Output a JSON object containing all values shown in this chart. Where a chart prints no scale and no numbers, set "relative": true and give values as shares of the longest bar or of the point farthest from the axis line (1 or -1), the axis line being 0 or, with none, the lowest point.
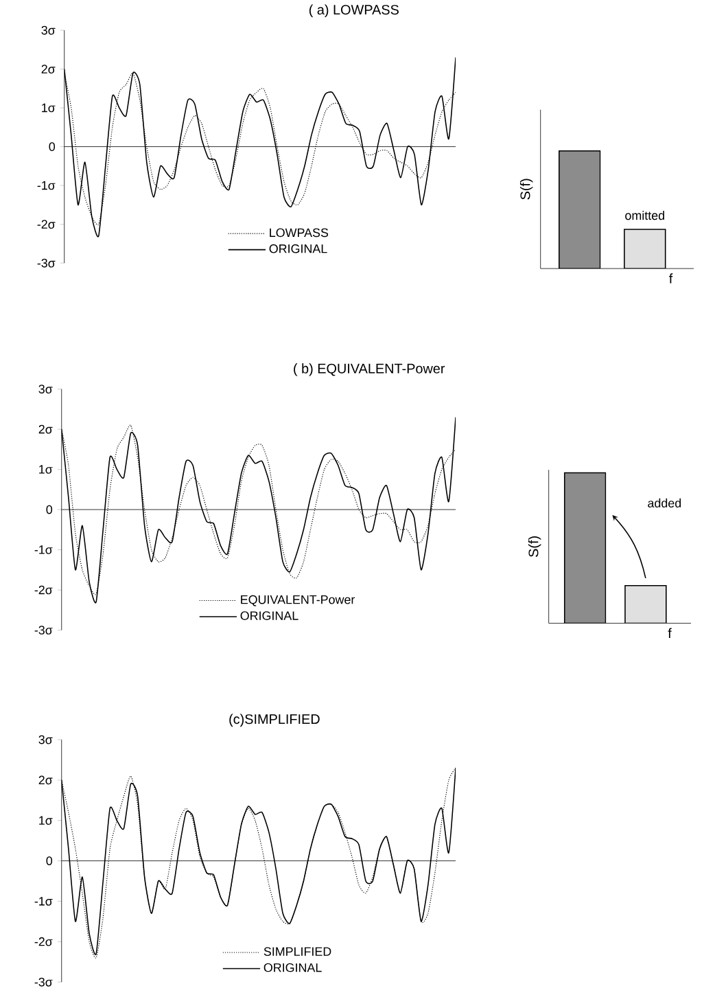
{
  "chart_data": [
    {
      "type": "line",
      "title": "( a) LOWPASS",
      "categories": [
        null,
        null,
        null,
        null,
        null,
        null,
        null,
        null,
        null,
        null,
        null,
        null,
        null,
        null,
        null,
        null,
        null,
        null,
        null,
        null,
        null,
        null,
        null,
        null,
        null,
        null,
        null,
        null,
        null,
        null,
        null,
        null,
        null,
        null,
        null,
        null,
        null,
        null,
        null,
        null,
        null,
        null,
        null,
        null,
        null,
        null,
        null,
        null,
        null,
        null,
        null,
        null,
        null,
        null,
        null,
        null,
        null,
        null
      ],
      "ylim": [
        -3,
        3
      ],
      "yticks": [
        {
          "value": 3,
          "label": "3σ"
        },
        {
          "value": 2,
          "label": "2σ"
        },
        {
          "value": 1,
          "label": "1σ"
        },
        0,
        {
          "value": -1,
          "label": "-1σ"
        },
        {
          "value": -2,
          "label": "-2σ"
        },
        {
          "value": -3,
          "label": "-3σ"
        }
      ],
      "legend": "bottom",
      "series": [
        {
          "name": "LOWPASS",
          "color": "#000000",
          "line_style": "dotted",
          "values": [
            1.9,
            1.0,
            -0.5,
            -1.3,
            -1.8,
            -2.0,
            -1.0,
            0.5,
            1.4,
            1.6,
            1.9,
            1.2,
            0.0,
            -0.9,
            -1.1,
            -1.0,
            -0.6,
            0.0,
            0.5,
            0.8,
            0.6,
            0.0,
            -0.6,
            -1.0,
            -1.0,
            -0.3,
            0.6,
            1.2,
            1.4,
            1.5,
            1.0,
            0.0,
            -0.9,
            -1.4,
            -1.5,
            -1.2,
            -0.5,
            0.3,
            0.9,
            1.1,
            1.1,
            0.8,
            0.5,
            0.1,
            -0.2,
            -0.2,
            -0.1,
            -0.1,
            -0.3,
            -0.4,
            -0.5,
            -0.7,
            -0.8,
            -0.4,
            0.3,
            0.9,
            1.2,
            1.4
          ]
        },
        {
          "name": "ORIGINAL",
          "color": "#000000",
          "line_style": "solid",
          "values": [
            2.0,
            0.3,
            -1.5,
            -0.4,
            -1.8,
            -2.3,
            -0.5,
            1.3,
            1.0,
            0.8,
            1.9,
            1.6,
            -0.4,
            -1.3,
            -0.5,
            -0.7,
            -0.8,
            0.3,
            1.2,
            1.1,
            0.2,
            -0.3,
            -0.35,
            -0.9,
            -1.1,
            -0.1,
            0.9,
            1.35,
            1.15,
            1.2,
            0.7,
            -0.2,
            -1.3,
            -1.55,
            -1.1,
            -0.5,
            0.3,
            0.9,
            1.35,
            1.4,
            1.1,
            0.6,
            0.55,
            0.4,
            -0.5,
            -0.5,
            0.3,
            0.6,
            -0.1,
            -0.8,
            0.0,
            -0.2,
            -1.5,
            -0.6,
            0.9,
            1.3,
            0.2,
            2.3
          ]
        }
      ]
    },
    {
      "type": "bar",
      "relative": true,
      "ylabel": "S(f)",
      "xlabel": "f",
      "categories": [
        null,
        null
      ],
      "annotations": [
        "omitted"
      ],
      "series": [
        {
          "colors": [
            "#8c8c8c",
            "#e0e0e0"
          ],
          "values": [
            1,
            0.333
          ]
        }
      ]
    },
    {
      "type": "line",
      "title": "( b) EQUIVALENT-Power",
      "categories": [
        null,
        null,
        null,
        null,
        null,
        null,
        null,
        null,
        null,
        null,
        null,
        null,
        null,
        null,
        null,
        null,
        null,
        null,
        null,
        null,
        null,
        null,
        null,
        null,
        null,
        null,
        null,
        null,
        null,
        null,
        null,
        null,
        null,
        null,
        null,
        null,
        null,
        null,
        null,
        null,
        null,
        null,
        null,
        null,
        null,
        null,
        null,
        null,
        null,
        null,
        null,
        null,
        null,
        null,
        null,
        null,
        null,
        null
      ],
      "ylim": [
        -3,
        3
      ],
      "yticks": [
        {
          "value": 3,
          "label": "3σ"
        },
        {
          "value": 2,
          "label": "2σ"
        },
        {
          "value": 1,
          "label": "1σ"
        },
        0,
        {
          "value": -1,
          "label": "-1σ"
        },
        {
          "value": -2,
          "label": "-2σ"
        },
        {
          "value": -3,
          "label": "-3σ"
        }
      ],
      "legend": "bottom",
      "series": [
        {
          "name": "EQUIVALENT-Power",
          "color": "#000000",
          "line_style": "dotted",
          "values": [
            2.0,
            1.1,
            -0.6,
            -1.5,
            -1.9,
            -2.1,
            -1.1,
            0.5,
            1.5,
            1.8,
            2.1,
            1.3,
            0.0,
            -1.0,
            -1.3,
            -1.2,
            -0.7,
            0.0,
            0.6,
            0.8,
            0.6,
            0.0,
            -0.6,
            -1.1,
            -1.2,
            -0.4,
            0.7,
            1.3,
            1.6,
            1.6,
            1.1,
            0.0,
            -1.0,
            -1.6,
            -1.7,
            -1.3,
            -0.5,
            0.3,
            1.0,
            1.25,
            1.2,
            0.9,
            0.5,
            0.0,
            -0.2,
            -0.15,
            -0.1,
            -0.1,
            -0.3,
            -0.5,
            -0.5,
            -0.8,
            -0.8,
            -0.4,
            0.4,
            1.0,
            1.3,
            1.5
          ]
        },
        {
          "name": "ORIGINAL",
          "color": "#000000",
          "line_style": "solid",
          "values": [
            2.0,
            0.3,
            -1.5,
            -0.4,
            -1.8,
            -2.3,
            -0.5,
            1.3,
            1.0,
            0.8,
            1.9,
            1.6,
            -0.4,
            -1.3,
            -0.5,
            -0.7,
            -0.8,
            0.3,
            1.2,
            1.1,
            0.2,
            -0.3,
            -0.35,
            -0.9,
            -1.1,
            -0.1,
            0.9,
            1.35,
            1.15,
            1.2,
            0.7,
            -0.2,
            -1.3,
            -1.55,
            -1.1,
            -0.5,
            0.3,
            0.9,
            1.35,
            1.4,
            1.1,
            0.6,
            0.55,
            0.4,
            -0.5,
            -0.5,
            0.3,
            0.6,
            -0.1,
            -0.8,
            0.0,
            -0.2,
            -1.5,
            -0.6,
            0.9,
            1.3,
            0.2,
            2.3
          ]
        }
      ]
    },
    {
      "type": "bar",
      "relative": true,
      "ylabel": "S(f)",
      "xlabel": "f",
      "categories": [
        null,
        null
      ],
      "annotations": [
        "added"
      ],
      "series": [
        {
          "colors": [
            "#8c8c8c",
            "#e0e0e0"
          ],
          "values": [
            1,
            0.25
          ]
        }
      ]
    },
    {
      "type": "line",
      "title": "(c)SIMPLIFIED",
      "categories": [
        null,
        null,
        null,
        null,
        null,
        null,
        null,
        null,
        null,
        null,
        null,
        null,
        null,
        null,
        null,
        null,
        null,
        null,
        null,
        null,
        null,
        null,
        null,
        null,
        null,
        null,
        null,
        null,
        null,
        null,
        null,
        null,
        null,
        null,
        null,
        null,
        null,
        null,
        null,
        null,
        null,
        null,
        null,
        null,
        null,
        null,
        null,
        null,
        null,
        null,
        null,
        null,
        null,
        null,
        null,
        null,
        null,
        null
      ],
      "ylim": [
        -3,
        3
      ],
      "yticks": [
        {
          "value": 3,
          "label": "3σ"
        },
        {
          "value": 2,
          "label": "2σ"
        },
        {
          "value": 1,
          "label": "1σ"
        },
        0,
        {
          "value": -1,
          "label": "-1σ"
        },
        {
          "value": -2,
          "label": "-2σ"
        },
        {
          "value": -3,
          "label": "-3σ"
        }
      ],
      "legend": "bottom",
      "series": [
        {
          "name": "SIMPLIFIED",
          "color": "#000000",
          "line_style": "dotted",
          "values": [
            2.0,
            1.2,
            0.3,
            -0.8,
            -2.0,
            -2.4,
            -1.4,
            0.3,
            1.0,
            1.6,
            2.1,
            1.4,
            -0.4,
            -1.3,
            -0.5,
            -0.7,
            0.2,
            1.0,
            1.3,
            1.0,
            0.1,
            -0.3,
            -0.4,
            -0.9,
            -1.1,
            -0.1,
            0.9,
            1.3,
            1.0,
            0.3,
            -0.6,
            -1.2,
            -1.5,
            -1.55,
            -1.1,
            -0.5,
            0.3,
            0.9,
            1.35,
            1.4,
            1.2,
            0.7,
            0.1,
            -0.6,
            -0.8,
            -0.4,
            0.3,
            0.6,
            -0.1,
            -0.8,
            0.0,
            -0.2,
            -1.5,
            -1.3,
            -0.3,
            1.0,
            2.0,
            2.3
          ]
        },
        {
          "name": "ORIGINAL",
          "color": "#000000",
          "line_style": "solid",
          "values": [
            2.0,
            0.3,
            -1.5,
            -0.4,
            -1.8,
            -2.3,
            -0.5,
            1.3,
            1.0,
            0.8,
            1.9,
            1.6,
            -0.4,
            -1.3,
            -0.5,
            -0.7,
            -0.8,
            0.3,
            1.2,
            1.1,
            0.2,
            -0.3,
            -0.35,
            -0.9,
            -1.1,
            -0.1,
            0.9,
            1.35,
            1.15,
            1.2,
            0.7,
            -0.2,
            -1.3,
            -1.55,
            -1.1,
            -0.5,
            0.3,
            0.9,
            1.35,
            1.4,
            1.1,
            0.6,
            0.55,
            0.4,
            -0.5,
            -0.5,
            0.3,
            0.6,
            -0.1,
            -0.8,
            0.0,
            -0.2,
            -1.5,
            -0.6,
            0.9,
            1.3,
            0.2,
            2.3
          ]
        }
      ]
    }
  ]
}
